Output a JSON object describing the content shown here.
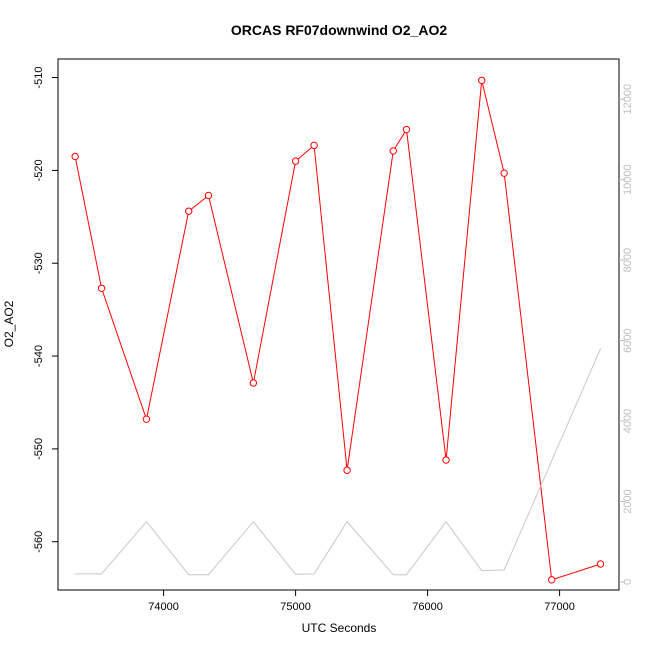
{
  "chart_data": {
    "type": "line",
    "title": "ORCAS RF07downwind O2_AO2",
    "xlabel": "UTC Seconds",
    "ylabel": "O2_AO2",
    "xlim": [
      73200,
      77450
    ],
    "ylim": [
      -565.2,
      -508.0
    ],
    "y2lim": [
      -200,
      13000
    ],
    "x_ticks": [
      74000,
      75000,
      76000,
      77000
    ],
    "y_ticks": [
      -560,
      -550,
      -540,
      -530,
      -520,
      -510
    ],
    "y2_ticks": [
      0,
      2000,
      4000,
      6000,
      8000,
      10000,
      12000
    ],
    "grid": false,
    "legend": "none",
    "series": [
      {
        "axis": "left",
        "color": "#ff0000",
        "markers": "open-circle",
        "x": [
          73330,
          73530,
          73870,
          74190,
          74340,
          74680,
          75000,
          75140,
          75390,
          75740,
          75840,
          76140,
          76410,
          76580,
          76940,
          77310
        ],
        "y": [
          -518.5,
          -532.7,
          -546.8,
          -524.4,
          -522.7,
          -542.9,
          -519.0,
          -517.3,
          -552.3,
          -517.9,
          -515.6,
          -551.2,
          -510.3,
          -520.3,
          -564.1,
          -562.4
        ]
      },
      {
        "axis": "right",
        "color": "#c8c8c8",
        "markers": "none",
        "x": [
          73330,
          73530,
          73870,
          74190,
          74340,
          74680,
          75000,
          75140,
          75390,
          75740,
          75840,
          76140,
          76410,
          76580,
          77310
        ],
        "y": [
          200,
          200,
          1500,
          180,
          180,
          1500,
          190,
          200,
          1500,
          180,
          180,
          1500,
          280,
          300,
          5800
        ]
      }
    ]
  }
}
